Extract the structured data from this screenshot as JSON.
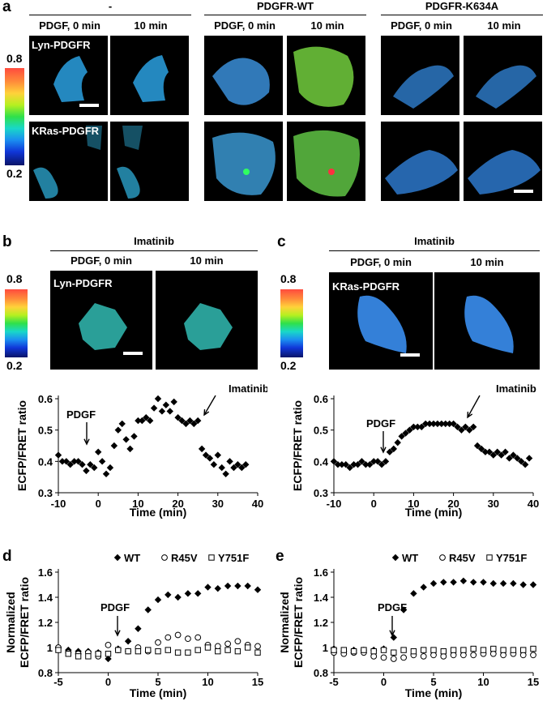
{
  "panel_a": {
    "letter": "a",
    "groups": [
      {
        "title": "-",
        "col0": "PDGF, 0 min",
        "col1": "10 min"
      },
      {
        "title": "PDGFR-WT",
        "col0": "PDGF, 0 min",
        "col1": "10 min"
      },
      {
        "title": "PDGFR-K634A",
        "col0": "PDGF, 0 min",
        "col1": "10 min"
      }
    ],
    "row_labels": [
      "Lyn-PDGFR",
      "KRas-PDGFR"
    ],
    "colorbar": {
      "max": "0.8",
      "min": "0.2"
    }
  },
  "panel_b": {
    "letter": "b",
    "title": "Imatinib",
    "col0": "PDGF, 0 min",
    "col1": "10 min",
    "image_label": "Lyn-PDGFR",
    "colorbar": {
      "max": "0.8",
      "min": "0.2"
    }
  },
  "panel_c": {
    "letter": "c",
    "title": "Imatinib",
    "col0": "PDGF, 0 min",
    "col1": "10 min",
    "image_label": "KRas-PDGFR",
    "colorbar": {
      "max": "0.8",
      "min": "0.2"
    }
  },
  "panel_d": {
    "letter": "d"
  },
  "panel_e": {
    "letter": "e"
  },
  "chart_data": [
    {
      "id": "b",
      "type": "scatter",
      "xlabel": "Time (min)",
      "ylabel": "ECFP/FRET  ratio",
      "xlim": [
        -10,
        40
      ],
      "ylim": [
        0.3,
        0.6
      ],
      "xticks": [
        "-10",
        "0",
        "10",
        "20",
        "30",
        "40"
      ],
      "yticks": [
        "0.3",
        "0.4",
        "0.5",
        "0.6"
      ],
      "annotations": [
        "PDGF",
        "Imatinib"
      ],
      "series": [
        {
          "marker": "diamond",
          "x": [
            -10,
            -9,
            -8,
            -7,
            -6,
            -5,
            -4,
            -3,
            -2,
            -1,
            0,
            1,
            2,
            3,
            4,
            5,
            6,
            7,
            8,
            9,
            10,
            11,
            12,
            13,
            14,
            15,
            16,
            17,
            18,
            19,
            20,
            21,
            22,
            23,
            24,
            25,
            26,
            27,
            28,
            29,
            30,
            31,
            32,
            33,
            34,
            35,
            36,
            37
          ],
          "y": [
            0.42,
            0.4,
            0.4,
            0.39,
            0.4,
            0.4,
            0.39,
            0.37,
            0.39,
            0.38,
            0.43,
            0.4,
            0.36,
            0.38,
            0.45,
            0.5,
            0.52,
            0.47,
            0.44,
            0.48,
            0.53,
            0.53,
            0.54,
            0.53,
            0.57,
            0.6,
            0.56,
            0.58,
            0.56,
            0.59,
            0.54,
            0.53,
            0.52,
            0.53,
            0.52,
            0.53,
            0.44,
            0.42,
            0.41,
            0.39,
            0.42,
            0.38,
            0.36,
            0.4,
            0.38,
            0.39,
            0.38,
            0.39
          ]
        }
      ]
    },
    {
      "id": "c",
      "type": "scatter",
      "xlabel": "Time (min)",
      "ylabel": "ECFP/FRET  ratio",
      "xlim": [
        -10,
        40
      ],
      "ylim": [
        0.3,
        0.6
      ],
      "xticks": [
        "-10",
        "0",
        "10",
        "20",
        "30",
        "40"
      ],
      "yticks": [
        "0.3",
        "0.4",
        "0.5",
        "0.6"
      ],
      "annotations": [
        "PDGF",
        "Imatinib"
      ],
      "series": [
        {
          "marker": "diamond",
          "x": [
            -10,
            -9,
            -8,
            -7,
            -6,
            -5,
            -4,
            -3,
            -2,
            -1,
            0,
            1,
            2,
            3,
            4,
            5,
            6,
            7,
            8,
            9,
            10,
            11,
            12,
            13,
            14,
            15,
            16,
            17,
            18,
            19,
            20,
            21,
            22,
            23,
            24,
            25,
            26,
            27,
            28,
            29,
            30,
            31,
            32,
            33,
            34,
            35,
            36,
            37,
            38,
            39
          ],
          "y": [
            0.4,
            0.39,
            0.39,
            0.39,
            0.38,
            0.39,
            0.39,
            0.4,
            0.39,
            0.39,
            0.4,
            0.4,
            0.39,
            0.4,
            0.43,
            0.44,
            0.46,
            0.48,
            0.49,
            0.5,
            0.51,
            0.51,
            0.51,
            0.52,
            0.52,
            0.52,
            0.52,
            0.52,
            0.52,
            0.52,
            0.52,
            0.51,
            0.5,
            0.51,
            0.5,
            0.51,
            0.45,
            0.44,
            0.43,
            0.43,
            0.42,
            0.43,
            0.42,
            0.43,
            0.41,
            0.42,
            0.41,
            0.4,
            0.39,
            0.41
          ]
        }
      ]
    },
    {
      "id": "d",
      "type": "scatter",
      "xlabel": "Time (min)",
      "ylabel": "Normalized\nECFP/FRET ratio",
      "xlim": [
        -5,
        15
      ],
      "ylim": [
        0.8,
        1.6
      ],
      "xticks": [
        "-5",
        "0",
        "5",
        "10",
        "15"
      ],
      "yticks": [
        "0.8",
        "1",
        "1.2",
        "1.4",
        "1.6"
      ],
      "annotations": [
        "PDGF"
      ],
      "legend_position": "top",
      "series": [
        {
          "name": "WT",
          "marker": "diamond",
          "x": [
            -5,
            -4,
            -3,
            -2,
            -1,
            0,
            1,
            2,
            3,
            4,
            5,
            6,
            7,
            8,
            9,
            10,
            11,
            12,
            13,
            14,
            15
          ],
          "y": [
            1.0,
            0.98,
            0.97,
            0.97,
            0.96,
            0.91,
            0.99,
            1.05,
            1.15,
            1.3,
            1.38,
            1.42,
            1.4,
            1.43,
            1.43,
            1.48,
            1.47,
            1.49,
            1.49,
            1.49,
            1.46
          ]
        },
        {
          "name": "R45V",
          "marker": "circle",
          "x": [
            -5,
            -4,
            -3,
            -2,
            -1,
            0,
            1,
            2,
            3,
            4,
            5,
            6,
            7,
            8,
            9,
            10,
            11,
            12,
            13,
            14,
            15
          ],
          "y": [
            1.0,
            0.96,
            0.95,
            0.96,
            0.93,
            1.02,
            0.98,
            0.97,
            1.0,
            0.97,
            1.04,
            1.08,
            1.1,
            1.07,
            1.08,
            1.02,
            1.01,
            1.03,
            1.05,
            1.02,
            1.01
          ]
        },
        {
          "name": "Y751F",
          "marker": "square",
          "x": [
            -5,
            -4,
            -3,
            -2,
            -1,
            0,
            1,
            2,
            3,
            4,
            5,
            6,
            7,
            8,
            9,
            10,
            11,
            12,
            13,
            14,
            15
          ],
          "y": [
            0.98,
            0.95,
            0.93,
            0.93,
            0.95,
            0.95,
            0.98,
            0.97,
            0.97,
            0.98,
            0.97,
            0.98,
            0.96,
            0.96,
            0.98,
            1.0,
            0.97,
            0.98,
            0.97,
            1.0,
            0.96
          ]
        }
      ]
    },
    {
      "id": "e",
      "type": "scatter",
      "xlabel": "Time (min)",
      "ylabel": "Normalized\nECFP/FRET ratio",
      "xlim": [
        -5,
        15
      ],
      "ylim": [
        0.8,
        1.6
      ],
      "xticks": [
        "-5",
        "0",
        "5",
        "10",
        "15"
      ],
      "yticks": [
        "0.8",
        "1",
        "1.2",
        "1.4",
        "1.6"
      ],
      "annotations": [
        "PDGF"
      ],
      "legend_position": "top",
      "series": [
        {
          "name": "WT",
          "marker": "diamond",
          "x": [
            -5,
            -4,
            -3,
            -2,
            -1,
            0,
            1,
            2,
            3,
            4,
            5,
            6,
            7,
            8,
            9,
            10,
            11,
            12,
            13,
            14,
            15
          ],
          "y": [
            0.99,
            0.97,
            0.98,
            0.98,
            0.98,
            0.99,
            1.08,
            1.3,
            1.43,
            1.48,
            1.51,
            1.52,
            1.52,
            1.53,
            1.52,
            1.52,
            1.51,
            1.51,
            1.51,
            1.5,
            1.5
          ]
        },
        {
          "name": "R45V",
          "marker": "circle",
          "x": [
            -5,
            -4,
            -3,
            -2,
            -1,
            0,
            1,
            2,
            3,
            4,
            5,
            6,
            7,
            8,
            9,
            10,
            11,
            12,
            13,
            14,
            15
          ],
          "y": [
            0.96,
            0.95,
            0.96,
            0.96,
            0.93,
            0.92,
            0.91,
            0.92,
            0.94,
            0.93,
            0.94,
            0.93,
            0.94,
            0.94,
            0.94,
            0.95,
            0.95,
            0.94,
            0.95,
            0.94,
            0.94
          ]
        },
        {
          "name": "Y751F",
          "marker": "square",
          "x": [
            -5,
            -4,
            -3,
            -2,
            -1,
            0,
            1,
            2,
            3,
            4,
            5,
            6,
            7,
            8,
            9,
            10,
            11,
            12,
            13,
            14,
            15
          ],
          "y": [
            0.98,
            0.98,
            0.97,
            0.98,
            0.97,
            0.98,
            0.96,
            0.98,
            0.97,
            0.98,
            0.98,
            0.97,
            0.98,
            0.98,
            0.99,
            0.98,
            0.99,
            0.98,
            0.98,
            0.98,
            0.99
          ]
        }
      ]
    }
  ]
}
